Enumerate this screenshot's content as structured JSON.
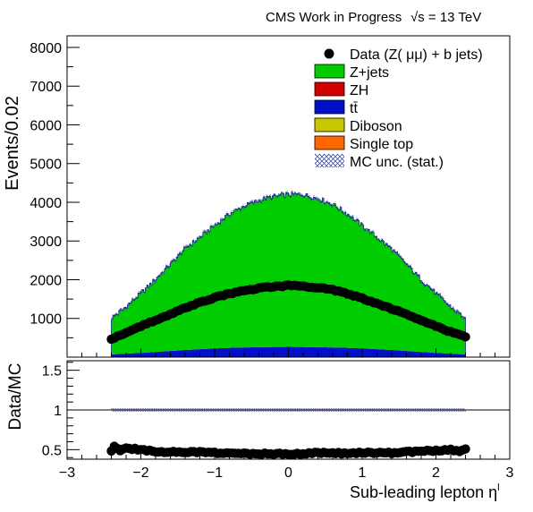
{
  "header": {
    "experiment": "CMS Work in Progress",
    "energy": "√s = 13 TeV"
  },
  "legend": {
    "entries": [
      {
        "label": "Data (Z( μμ) + b jets)",
        "kind": "marker",
        "color": "#000000"
      },
      {
        "label": "Z+jets",
        "kind": "fill",
        "color": "#00cc00"
      },
      {
        "label": "ZH",
        "kind": "fill",
        "color": "#d40000"
      },
      {
        "label": "tt̄",
        "kind": "fill",
        "color": "#0010c8"
      },
      {
        "label": "Diboson",
        "kind": "fill",
        "color": "#c8c800"
      },
      {
        "label": "Single top",
        "kind": "fill",
        "color": "#ff6600"
      },
      {
        "label": "MC unc. (stat.)",
        "kind": "hatch",
        "color": "#2a3a9a"
      }
    ]
  },
  "chart_data": [
    {
      "type": "area",
      "panel": "main",
      "ylabel": "Events/0.02",
      "xlim": [
        -3,
        3
      ],
      "ylim": [
        0,
        8300
      ],
      "yticks": [
        1000,
        2000,
        3000,
        4000,
        5000,
        6000,
        7000,
        8000
      ],
      "xticks": [
        -3,
        -2,
        -1,
        0,
        1,
        2,
        3
      ],
      "bin_width": 0.02,
      "x": [
        -2.4,
        -2.2,
        -2.0,
        -1.8,
        -1.6,
        -1.4,
        -1.2,
        -1.0,
        -0.8,
        -0.6,
        -0.4,
        -0.2,
        0.0,
        0.2,
        0.4,
        0.6,
        0.8,
        1.0,
        1.2,
        1.4,
        1.6,
        1.8,
        2.0,
        2.2,
        2.4
      ],
      "series": [
        {
          "name": "tt̄",
          "values": [
            70,
            90,
            110,
            135,
            160,
            185,
            205,
            225,
            240,
            250,
            258,
            262,
            265,
            262,
            258,
            250,
            240,
            225,
            205,
            185,
            160,
            135,
            110,
            90,
            70
          ]
        },
        {
          "name": "Z+jets",
          "values": [
            930,
            1210,
            1540,
            1870,
            2240,
            2615,
            2895,
            3175,
            3460,
            3650,
            3792,
            3888,
            3935,
            3938,
            3842,
            3700,
            3460,
            3175,
            2895,
            2615,
            2240,
            1870,
            1540,
            1210,
            930
          ]
        },
        {
          "name": "ZH",
          "values": [
            0,
            0,
            0,
            0,
            0,
            0,
            0,
            0,
            0,
            0,
            0,
            0,
            0,
            0,
            0,
            0,
            0,
            0,
            0,
            0,
            0,
            0,
            0,
            0,
            0
          ]
        },
        {
          "name": "Diboson",
          "values": [
            0,
            0,
            0,
            0,
            0,
            0,
            0,
            0,
            0,
            0,
            0,
            0,
            0,
            0,
            0,
            0,
            0,
            0,
            0,
            0,
            0,
            0,
            0,
            0,
            0
          ]
        },
        {
          "name": "Single top",
          "values": [
            0,
            0,
            0,
            0,
            0,
            0,
            0,
            0,
            0,
            0,
            0,
            0,
            0,
            0,
            0,
            0,
            0,
            0,
            0,
            0,
            0,
            0,
            0,
            0,
            0
          ]
        },
        {
          "name": "Data (Z( μμ) + b jets)",
          "values": [
            470,
            620,
            800,
            960,
            1110,
            1270,
            1410,
            1540,
            1640,
            1720,
            1780,
            1820,
            1850,
            1830,
            1800,
            1740,
            1640,
            1520,
            1380,
            1250,
            1100,
            950,
            800,
            650,
            520
          ]
        }
      ]
    },
    {
      "type": "scatter",
      "panel": "ratio",
      "ylabel": "Data/MC",
      "xlabel": "Sub-leading lepton η",
      "xlabel_superscript": "l",
      "xlim": [
        -3,
        3
      ],
      "ylim": [
        0.38,
        1.62
      ],
      "yticks": [
        0.5,
        1,
        1.5
      ],
      "ytick_labels": [
        "0.5",
        "1",
        "1.5"
      ],
      "xticks": [
        -3,
        -2,
        -1,
        0,
        1,
        2,
        3
      ],
      "reference_line": 1,
      "x": [
        -2.4,
        -2.35,
        -2.3,
        -2.2,
        -2.0,
        -1.8,
        -1.6,
        -1.4,
        -1.2,
        -1.0,
        -0.8,
        -0.6,
        -0.4,
        -0.2,
        0.0,
        0.2,
        0.4,
        0.6,
        0.8,
        1.0,
        1.2,
        1.4,
        1.6,
        1.8,
        2.0,
        2.2,
        2.3,
        2.4
      ],
      "values": [
        0.48,
        0.55,
        0.49,
        0.52,
        0.5,
        0.48,
        0.47,
        0.47,
        0.47,
        0.46,
        0.45,
        0.45,
        0.45,
        0.45,
        0.45,
        0.45,
        0.46,
        0.46,
        0.45,
        0.46,
        0.46,
        0.46,
        0.47,
        0.48,
        0.49,
        0.5,
        0.48,
        0.5
      ]
    }
  ]
}
